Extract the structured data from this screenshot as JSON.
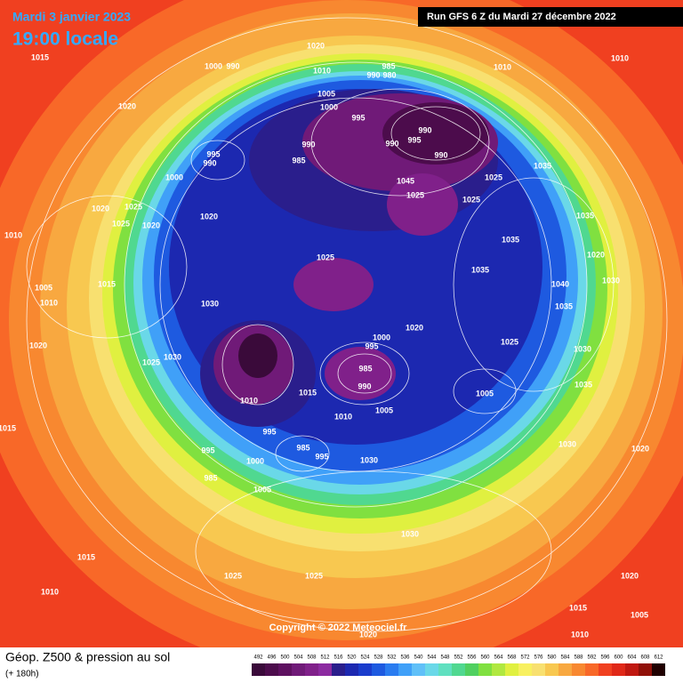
{
  "header": {
    "date": "Mardi 3 janvier 2023",
    "time": "19:00 locale",
    "run": "Run GFS 6 Z du Mardi 27 décembre 2022"
  },
  "copyright": "Copyright © 2022 Meteociel.fr",
  "footer": {
    "title": "Géop. Z500 & pression au sol",
    "lead": "(+ 180h)"
  },
  "legend": {
    "levels": [
      492,
      496,
      500,
      504,
      508,
      512,
      516,
      520,
      524,
      528,
      532,
      536,
      540,
      544,
      548,
      552,
      556,
      560,
      564,
      568,
      572,
      576,
      580,
      584,
      588,
      592,
      596,
      600,
      604,
      608,
      612
    ],
    "colors": [
      "#3a0a3a",
      "#4c0c4c",
      "#5e1060",
      "#701a78",
      "#80208a",
      "#8c2aa0",
      "#2a1e8c",
      "#1c28b0",
      "#1a3ccc",
      "#1e5ae0",
      "#2a7cf0",
      "#40a0f8",
      "#60c0f8",
      "#6ad8e8",
      "#60e0c0",
      "#50d890",
      "#50d060",
      "#80e040",
      "#b0e840",
      "#e0f040",
      "#f8f060",
      "#f8e070",
      "#f8c850",
      "#f8a840",
      "#f88830",
      "#f86828",
      "#f04020",
      "#e02818",
      "#c01810",
      "#901008",
      "#200000"
    ]
  },
  "isobar_labels": [
    1020,
    1015,
    1000,
    990,
    1010,
    985,
    990,
    980,
    1010,
    1010,
    1020,
    1005,
    1000,
    995,
    990,
    985,
    995,
    990,
    990,
    995,
    990,
    990,
    1035,
    1045,
    1025,
    1025,
    1025,
    1000,
    1020,
    1025,
    1025,
    1020,
    1020,
    1035,
    1010,
    1035,
    1025,
    1020,
    1035,
    1040,
    1030,
    1015,
    1005,
    1010,
    1030,
    1035,
    1020,
    1000,
    995,
    1025,
    1020,
    1030,
    1025,
    1030,
    985,
    990,
    1015,
    1010,
    1005,
    1035,
    1010,
    1005,
    1015,
    995,
    985,
    995,
    995,
    1000,
    1030,
    985,
    1005,
    1030,
    1020,
    1030,
    1015,
    1025,
    1025,
    1010,
    1020,
    1015,
    1005,
    1010,
    1020
  ]
}
